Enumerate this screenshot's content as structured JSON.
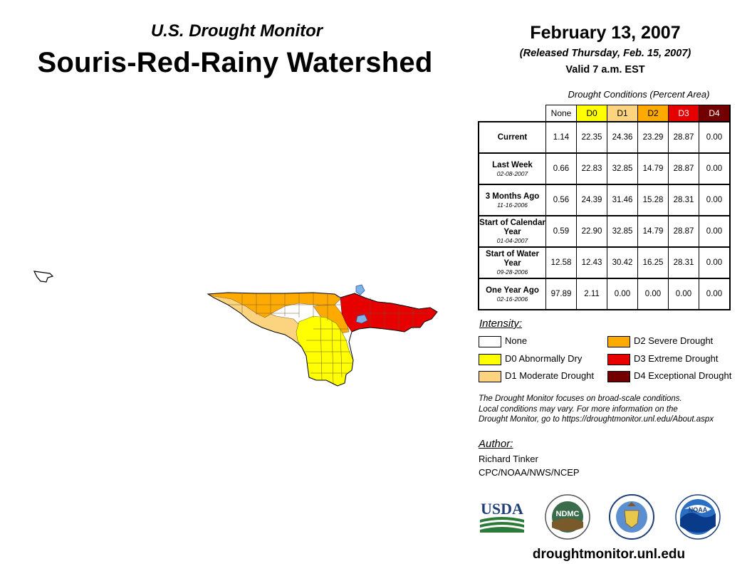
{
  "header": {
    "subtitle": "U.S. Drought Monitor",
    "title": "Souris-Red-Rainy Watershed",
    "date": "February 13, 2007",
    "released": "(Released Thursday, Feb. 15, 2007)",
    "valid": "Valid 7 a.m. EST"
  },
  "table": {
    "caption": "Drought Conditions (Percent Area)",
    "columns": [
      "None",
      "D0",
      "D1",
      "D2",
      "D3",
      "D4"
    ],
    "column_colors": [
      "#ffffff",
      "#ffff00",
      "#fcd37f",
      "#ffaa00",
      "#e60000",
      "#730000"
    ],
    "rows": [
      {
        "label": "Current",
        "date": "",
        "values": [
          "1.14",
          "22.35",
          "24.36",
          "23.29",
          "28.87",
          "0.00"
        ]
      },
      {
        "label": "Last Week",
        "date": "02-08-2007",
        "values": [
          "0.66",
          "22.83",
          "32.85",
          "14.79",
          "28.87",
          "0.00"
        ]
      },
      {
        "label": "3 Months Ago",
        "date": "11-16-2006",
        "values": [
          "0.56",
          "24.39",
          "31.46",
          "15.28",
          "28.31",
          "0.00"
        ]
      },
      {
        "label": "Start of Calendar Year",
        "date": "01-04-2007",
        "values": [
          "0.59",
          "22.90",
          "32.85",
          "14.79",
          "28.87",
          "0.00"
        ]
      },
      {
        "label": "Start of Water Year",
        "date": "09-28-2006",
        "values": [
          "12.58",
          "12.43",
          "30.42",
          "16.25",
          "28.31",
          "0.00"
        ]
      },
      {
        "label": "One Year Ago",
        "date": "02-16-2006",
        "values": [
          "97.89",
          "2.11",
          "0.00",
          "0.00",
          "0.00",
          "0.00"
        ]
      }
    ]
  },
  "legend": {
    "title": "Intensity:",
    "items": [
      {
        "label": "None",
        "color": "#ffffff"
      },
      {
        "label": "D0 Abnormally Dry",
        "color": "#ffff00"
      },
      {
        "label": "D1 Moderate Drought",
        "color": "#fcd37f"
      },
      {
        "label": "D2 Severe Drought",
        "color": "#ffaa00"
      },
      {
        "label": "D3 Extreme Drought",
        "color": "#e60000"
      },
      {
        "label": "D4 Exceptional Drought",
        "color": "#730000"
      }
    ]
  },
  "note": {
    "line1": "The Drought Monitor focuses on broad-scale conditions.",
    "line2": "Local conditions may vary. For more information on the",
    "line3": "Drought Monitor, go to https://droughtmonitor.unl.edu/About.aspx"
  },
  "author": {
    "label": "Author:",
    "name": "Richard Tinker",
    "org": "CPC/NOAA/NWS/NCEP"
  },
  "logos": {
    "usda": "USDA",
    "ndmc": "NDMC",
    "noaa": "NOAA"
  },
  "footer": {
    "url": "droughtmonitor.unl.edu"
  }
}
